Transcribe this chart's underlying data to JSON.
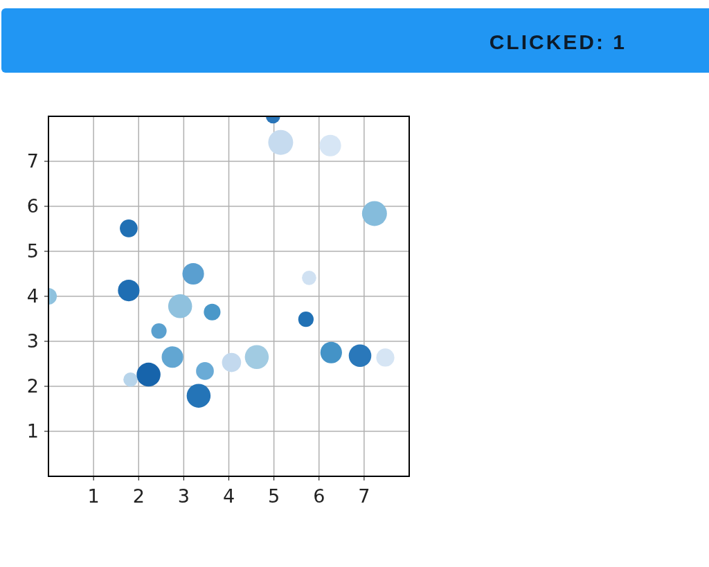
{
  "chart_data": {
    "type": "bubble",
    "annotations": [
      "CLICKED: 1"
    ],
    "x": [
      4.98,
      5.15,
      6.25,
      7.23,
      1.78,
      3.21,
      5.78,
      1.78,
      0,
      2.92,
      3.63,
      5.71,
      2.45,
      2.75,
      6.27,
      6.91,
      7.47,
      4.62,
      4.06,
      3.47,
      1.82,
      2.22,
      3.33
    ],
    "values": [
      8.0,
      7.42,
      7.35,
      5.84,
      5.51,
      4.5,
      4.41,
      4.13,
      4.0,
      3.78,
      3.65,
      3.49,
      3.23,
      2.65,
      2.75,
      2.68,
      2.64,
      2.65,
      2.53,
      2.34,
      2.15,
      2.26,
      1.79
    ],
    "sizes": [
      0.33,
      1,
      0.75,
      1,
      0.51,
      0.75,
      0.33,
      0.75,
      0.45,
      0.92,
      0.45,
      0.38,
      0.38,
      0.75,
      0.75,
      0.82,
      0.53,
      0.92,
      0.59,
      0.51,
      0.33,
      0.92,
      0.92
    ],
    "colors": [
      "#2a75b8",
      "#c6dbef",
      "#d7e6f5",
      "#85bcdc",
      "#2070b4",
      "#5a9fd0",
      "#d0e1f2",
      "#1f6eb3",
      "#8fc2de",
      "#8fc1de",
      "#4a98c9",
      "#2171b5",
      "#5aa0cf",
      "#62a6d2",
      "#4493c7",
      "#2a78ba",
      "#d6e5f4",
      "#a1cbe2",
      "#c3d9ee",
      "#6aabd6",
      "#b7d4ea",
      "#1764ab",
      "#2474b7"
    ],
    "xlim": [
      0,
      8
    ],
    "ylim": [
      0,
      8
    ],
    "xticks": [
      1,
      2,
      3,
      4,
      5,
      6,
      7
    ],
    "yticks": [
      1,
      2,
      3,
      4,
      5,
      6,
      7
    ],
    "grid": true
  }
}
